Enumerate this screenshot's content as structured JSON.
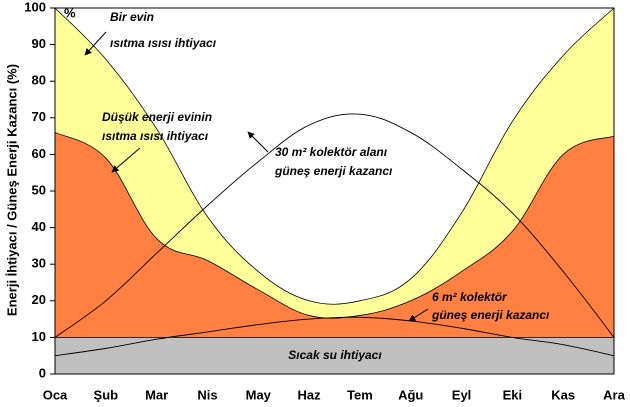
{
  "chart_data": {
    "type": "area",
    "y_label": "Enerji İhtiyacı / Güneş Enerji Kazancı (%)",
    "unit_label": "%",
    "categories": [
      "Oca",
      "Şub",
      "Mar",
      "Nis",
      "May",
      "Haz",
      "Tem",
      "Ağu",
      "Eyl",
      "Eki",
      "Kas",
      "Ara"
    ],
    "ylim": [
      0,
      100
    ],
    "yticks": [
      0,
      10,
      20,
      30,
      40,
      50,
      60,
      70,
      80,
      90,
      100
    ],
    "series": [
      {
        "kind": "area",
        "color": "#ffff99",
        "label_lines": [
          "Bir evin",
          "ısıtma ısısı ihtiyacı"
        ],
        "values": [
          100,
          86,
          67,
          43,
          28,
          20,
          20,
          26,
          44,
          69,
          87,
          100
        ]
      },
      {
        "kind": "area",
        "color": "#ff8040",
        "label_lines": [
          "Düşük enerji evinin",
          "ısıtma ısısı ihtiyacı"
        ],
        "values": [
          66,
          59,
          37,
          31,
          23,
          16,
          16,
          20,
          28,
          39,
          60,
          65
        ]
      },
      {
        "kind": "area",
        "color": "#c0c0c0",
        "label_lines": [
          "Sıcak su ihtiyacı"
        ],
        "values": [
          10,
          10,
          10,
          10,
          10,
          10,
          10,
          10,
          10,
          10,
          10,
          10
        ]
      },
      {
        "kind": "line",
        "color": "#000000",
        "label_lines": [
          "30 m² kolektör alanı",
          "güneş enerji kazancı"
        ],
        "values": [
          10,
          20,
          33,
          46,
          58,
          68,
          71,
          66,
          56,
          44,
          28,
          10
        ]
      },
      {
        "kind": "line",
        "color": "#000000",
        "label_lines": [
          "6 m² kolektör",
          "güneş enerji kazancı"
        ],
        "values": [
          5,
          7,
          9.5,
          11.5,
          13.5,
          15,
          15.5,
          14.5,
          12.5,
          10,
          8,
          5
        ]
      }
    ]
  }
}
